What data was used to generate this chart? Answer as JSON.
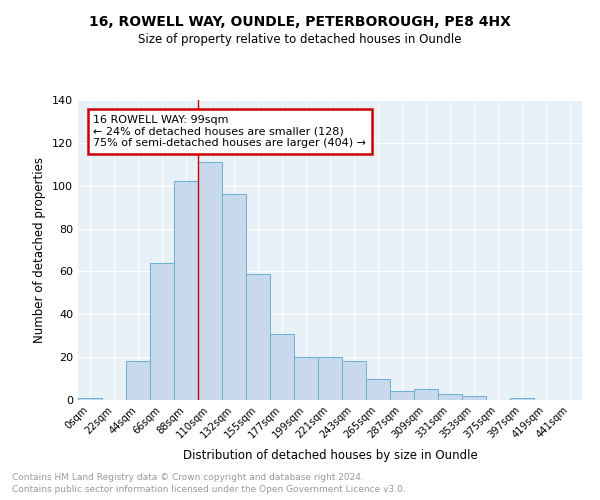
{
  "title_line1": "16, ROWELL WAY, OUNDLE, PETERBOROUGH, PE8 4HX",
  "title_line2": "Size of property relative to detached houses in Oundle",
  "xlabel": "Distribution of detached houses by size in Oundle",
  "ylabel": "Number of detached properties",
  "bar_color": "#c8d8ed",
  "bar_edgecolor": "#6baed6",
  "bg_color": "#e8f0f8",
  "grid_color": "#ffffff",
  "bin_labels": [
    "0sqm",
    "22sqm",
    "44sqm",
    "66sqm",
    "88sqm",
    "110sqm",
    "132sqm",
    "155sqm",
    "177sqm",
    "199sqm",
    "221sqm",
    "243sqm",
    "265sqm",
    "287sqm",
    "309sqm",
    "331sqm",
    "353sqm",
    "375sqm",
    "397sqm",
    "419sqm",
    "441sqm"
  ],
  "bar_heights": [
    1,
    0,
    18,
    64,
    102,
    111,
    96,
    59,
    31,
    20,
    20,
    18,
    10,
    4,
    5,
    3,
    2,
    0,
    1,
    0,
    0
  ],
  "ylim": [
    0,
    140
  ],
  "yticks": [
    0,
    20,
    40,
    60,
    80,
    100,
    120,
    140
  ],
  "vline_pos": 4.5,
  "annotation_title": "16 ROWELL WAY: 99sqm",
  "annotation_line1": "← 24% of detached houses are smaller (128)",
  "annotation_line2": "75% of semi-detached houses are larger (404) →",
  "annotation_box_color": "#cc0000",
  "footnote1": "Contains HM Land Registry data © Crown copyright and database right 2024.",
  "footnote2": "Contains public sector information licensed under the Open Government Licence v3.0."
}
